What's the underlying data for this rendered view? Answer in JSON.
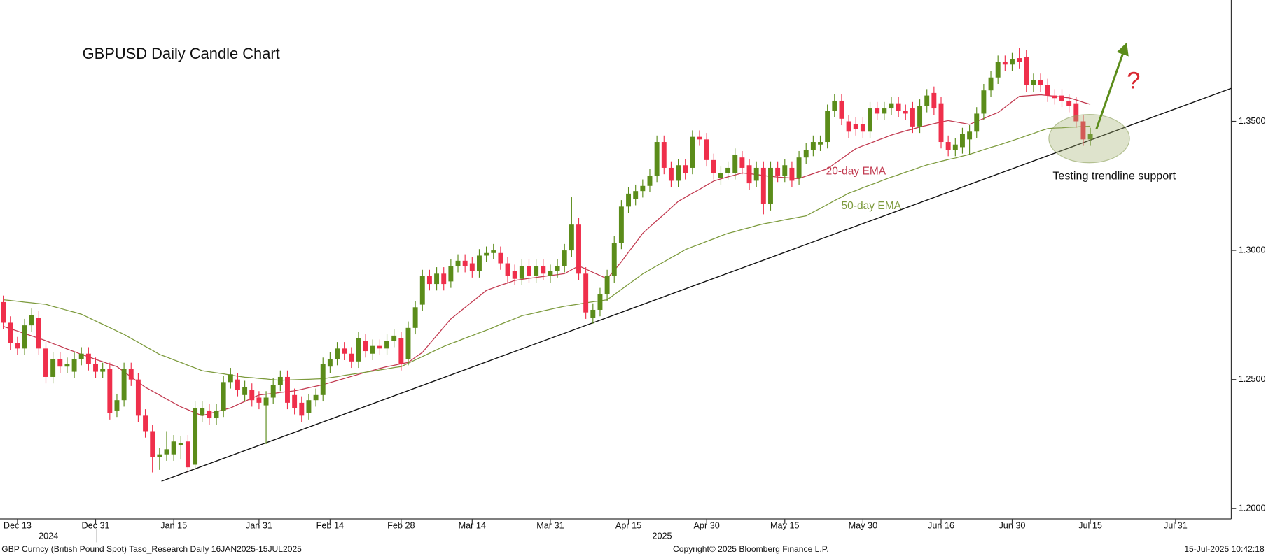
{
  "chart_data": {
    "type": "candlestick",
    "title": "GBPUSD Daily Candle Chart",
    "categories": [
      null,
      null,
      "Dec 13",
      null,
      null,
      null,
      null,
      null,
      null,
      null,
      null,
      null,
      null,
      "Dec 31",
      null,
      null,
      null,
      null,
      null,
      null,
      null,
      null,
      null,
      null,
      "Jan 15",
      null,
      null,
      null,
      null,
      null,
      null,
      null,
      null,
      null,
      null,
      null,
      "Jan 31",
      null,
      null,
      null,
      null,
      null,
      null,
      null,
      null,
      null,
      "Feb 14",
      null,
      null,
      null,
      null,
      null,
      null,
      null,
      null,
      null,
      "Feb 28",
      null,
      null,
      null,
      null,
      null,
      null,
      null,
      null,
      null,
      "Mar 14",
      null,
      null,
      null,
      null,
      null,
      null,
      null,
      null,
      null,
      null,
      "Mar 31",
      null,
      null,
      null,
      null,
      null,
      null,
      null,
      null,
      null,
      null,
      "Apr 15",
      null,
      null,
      null,
      null,
      null,
      null,
      null,
      null,
      null,
      null,
      "Apr 30",
      null,
      null,
      null,
      null,
      null,
      null,
      null,
      null,
      null,
      null,
      "May 15",
      null,
      null,
      null,
      null,
      null,
      null,
      null,
      null,
      null,
      null,
      "May 30",
      null,
      null,
      null,
      null,
      null,
      null,
      null,
      null,
      null,
      null,
      "Jun 16",
      null,
      null,
      null,
      null,
      null,
      null,
      null,
      null,
      null,
      "Jun 30",
      null,
      null,
      null,
      null,
      null,
      null,
      null,
      null,
      null,
      null,
      "Jul 15",
      null,
      null,
      null,
      null,
      null,
      null,
      null,
      null,
      null,
      null,
      null,
      "Jul 31"
    ],
    "years": [
      "2024",
      "2025"
    ],
    "open": [
      1.28,
      1.272,
      1.264,
      1.262,
      1.271,
      1.274,
      1.262,
      1.251,
      1.258,
      1.255,
      1.253,
      1.258,
      1.26,
      1.256,
      1.253,
      1.254,
      1.238,
      1.242,
      1.254,
      1.25,
      1.236,
      1.23,
      1.22,
      1.221,
      1.221,
      1.2245,
      1.226,
      1.217,
      1.236,
      1.238,
      1.235,
      1.238,
      1.249,
      1.25,
      1.244,
      1.246,
      1.243,
      1.24,
      1.243,
      1.248,
      1.251,
      1.244,
      1.241,
      1.237,
      1.242,
      1.244,
      1.255,
      1.258,
      1.262,
      1.26,
      1.257,
      1.265,
      1.26,
      1.263,
      1.262,
      1.265,
      1.266,
      1.258,
      1.27,
      1.279,
      1.29,
      1.287,
      1.291,
      1.288,
      1.294,
      1.296,
      1.295,
      1.292,
      1.298,
      1.299,
      1.299,
      1.295,
      1.292,
      1.289,
      1.294,
      1.29,
      1.294,
      1.29,
      1.292,
      1.294,
      1.3,
      1.31,
      1.291,
      1.274,
      1.277,
      1.283,
      1.29,
      1.303,
      1.317,
      1.32,
      1.323,
      1.325,
      1.329,
      1.342,
      1.332,
      1.327,
      1.333,
      1.332,
      1.344,
      1.343,
      1.335,
      1.328,
      1.33,
      1.33,
      1.336,
      1.333,
      1.327,
      1.332,
      1.318,
      1.332,
      1.329,
      1.332,
      1.328,
      1.336,
      1.339,
      1.341,
      1.342,
      1.354,
      1.358,
      1.35,
      1.349,
      1.349,
      1.346,
      1.355,
      1.353,
      1.355,
      1.357,
      1.354,
      1.355,
      1.348,
      1.356,
      1.361,
      1.357,
      1.342,
      1.339,
      1.34,
      1.343,
      1.346,
      1.353,
      1.362,
      1.367,
      1.373,
      1.372,
      1.3745,
      1.375,
      1.364,
      1.366,
      1.364,
      1.36,
      1.36,
      1.358,
      1.357,
      1.35,
      1.343,
      null,
      null,
      null,
      null,
      null,
      null,
      null,
      null,
      null,
      null,
      null,
      null
    ],
    "high": [
      1.2825,
      1.2745,
      1.2665,
      1.2735,
      1.2775,
      1.2765,
      1.2645,
      1.2605,
      1.2605,
      1.2585,
      1.2605,
      1.2625,
      1.2625,
      1.2585,
      1.2565,
      1.2565,
      1.2445,
      1.2565,
      1.2565,
      1.2525,
      1.2385,
      1.2325,
      1.2235,
      1.23,
      1.2285,
      1.228,
      1.2285,
      1.2415,
      1.2415,
      1.2405,
      1.2405,
      1.2515,
      1.2545,
      1.2525,
      1.2495,
      1.2485,
      1.2455,
      1.2455,
      1.2505,
      1.2535,
      1.2535,
      1.2465,
      1.2435,
      1.2445,
      1.2465,
      1.2585,
      1.2605,
      1.2645,
      1.2645,
      1.2625,
      1.2685,
      1.2675,
      1.2655,
      1.2655,
      1.2675,
      1.2695,
      1.2685,
      1.2725,
      1.2805,
      1.2925,
      1.2925,
      1.2935,
      1.2935,
      1.2965,
      1.2985,
      1.2985,
      1.2975,
      1.3005,
      1.3015,
      1.3025,
      1.3015,
      1.2975,
      1.2945,
      1.2965,
      1.2965,
      1.2965,
      1.2965,
      1.2945,
      1.2965,
      1.3025,
      1.3206,
      1.3125,
      1.2935,
      1.2795,
      1.2855,
      1.2925,
      1.3055,
      1.3195,
      1.3245,
      1.3255,
      1.3275,
      1.3315,
      1.3445,
      1.3445,
      1.3345,
      1.3355,
      1.3355,
      1.3465,
      1.3465,
      1.3455,
      1.3375,
      1.3325,
      1.3345,
      1.3395,
      1.3385,
      1.3355,
      1.3345,
      1.3345,
      1.3345,
      1.3345,
      1.3355,
      1.3345,
      1.3385,
      1.3415,
      1.3445,
      1.3445,
      1.3565,
      1.3605,
      1.3605,
      1.3525,
      1.3515,
      1.3515,
      1.3575,
      1.3575,
      1.3575,
      1.3595,
      1.3595,
      1.3565,
      1.3575,
      1.3585,
      1.3625,
      1.3635,
      1.3595,
      1.3445,
      1.3435,
      1.3475,
      1.3485,
      1.3555,
      1.3645,
      1.3695,
      1.3755,
      1.3755,
      1.3765,
      1.3784,
      1.3775,
      1.3685,
      1.3685,
      1.3665,
      1.3625,
      1.3625,
      1.3605,
      1.3595,
      1.3525,
      1.3475,
      null,
      null,
      null,
      null,
      null,
      null,
      null,
      null,
      null,
      null,
      null,
      null
    ],
    "low": [
      1.2695,
      1.2615,
      1.2595,
      1.2595,
      1.2685,
      1.2595,
      1.2485,
      1.2485,
      1.2525,
      1.2525,
      1.2505,
      1.2555,
      1.2535,
      1.2505,
      1.2505,
      1.2345,
      1.2355,
      1.2395,
      1.2475,
      1.2335,
      1.2275,
      1.214,
      1.215,
      1.2185,
      1.2185,
      1.219,
      1.214,
      1.215,
      1.2335,
      1.2325,
      1.2325,
      1.2355,
      1.2465,
      1.2435,
      1.2415,
      1.2395,
      1.2385,
      1.225,
      1.2405,
      1.2455,
      1.2385,
      1.2365,
      1.2335,
      1.2345,
      1.2395,
      1.2415,
      1.2525,
      1.2555,
      1.2575,
      1.2545,
      1.2545,
      1.2585,
      1.2575,
      1.2595,
      1.2595,
      1.2625,
      1.2535,
      1.2555,
      1.2675,
      1.2765,
      1.2845,
      1.2845,
      1.2845,
      1.2855,
      1.2915,
      1.2915,
      1.2895,
      1.2895,
      1.2955,
      1.2965,
      1.2925,
      1.2875,
      1.2865,
      1.2865,
      1.2875,
      1.2875,
      1.2885,
      1.2875,
      1.2895,
      1.2915,
      1.2975,
      1.2885,
      1.2735,
      1.2716,
      1.2745,
      1.2805,
      1.2875,
      1.3005,
      1.3145,
      1.3175,
      1.3205,
      1.3225,
      1.3265,
      1.3295,
      1.3245,
      1.3245,
      1.3275,
      1.3295,
      1.3405,
      1.3325,
      1.3275,
      1.3255,
      1.3275,
      1.3275,
      1.3295,
      1.3235,
      1.3245,
      1.314,
      1.3155,
      1.3265,
      1.3265,
      1.3245,
      1.3255,
      1.3335,
      1.3365,
      1.3385,
      1.3395,
      1.3515,
      1.3485,
      1.3435,
      1.3445,
      1.3435,
      1.3435,
      1.3505,
      1.3505,
      1.3525,
      1.3515,
      1.3505,
      1.3455,
      1.3455,
      1.3535,
      1.3525,
      1.3395,
      1.3365,
      1.3365,
      1.3375,
      1.337,
      1.3435,
      1.3505,
      1.3595,
      1.3645,
      1.3695,
      1.3695,
      1.3705,
      1.3615,
      1.3615,
      1.3615,
      1.3575,
      1.3565,
      1.3555,
      1.3535,
      1.3475,
      1.3405,
      1.3405,
      null,
      null,
      null,
      null,
      null,
      null,
      null,
      null,
      null,
      null,
      null,
      null
    ],
    "close": [
      1.272,
      1.264,
      1.262,
      1.271,
      1.275,
      1.262,
      1.251,
      1.258,
      1.255,
      1.256,
      1.258,
      1.26,
      1.256,
      1.253,
      1.254,
      1.237,
      1.242,
      1.254,
      1.25,
      1.236,
      1.23,
      1.22,
      1.221,
      1.223,
      1.226,
      1.2255,
      1.216,
      1.239,
      1.239,
      1.235,
      1.238,
      1.249,
      1.252,
      1.246,
      1.247,
      1.242,
      1.241,
      1.243,
      1.248,
      1.251,
      1.241,
      1.239,
      1.236,
      1.242,
      1.244,
      1.256,
      1.258,
      1.262,
      1.26,
      1.257,
      1.266,
      1.261,
      1.263,
      1.262,
      1.265,
      1.267,
      1.256,
      1.27,
      1.278,
      1.29,
      1.287,
      1.291,
      1.287,
      1.294,
      1.296,
      1.294,
      1.292,
      1.298,
      1.299,
      1.3,
      1.295,
      1.29,
      1.289,
      1.294,
      1.29,
      1.294,
      1.291,
      1.292,
      1.294,
      1.3,
      1.31,
      1.291,
      1.276,
      1.277,
      1.283,
      1.29,
      1.303,
      1.317,
      1.322,
      1.323,
      1.325,
      1.329,
      1.342,
      1.332,
      1.327,
      1.333,
      1.33,
      1.344,
      1.343,
      1.335,
      1.33,
      1.33,
      1.332,
      1.337,
      1.332,
      1.326,
      1.332,
      1.318,
      1.332,
      1.329,
      1.333,
      1.327,
      1.336,
      1.339,
      1.342,
      1.342,
      1.354,
      1.358,
      1.351,
      1.346,
      1.347,
      1.346,
      1.355,
      1.353,
      1.355,
      1.357,
      1.354,
      1.353,
      1.348,
      1.356,
      1.36,
      1.355,
      1.342,
      1.339,
      1.341,
      1.345,
      1.346,
      1.353,
      1.362,
      1.367,
      1.373,
      1.372,
      1.374,
      1.373,
      1.364,
      1.366,
      1.364,
      1.36,
      1.359,
      1.358,
      1.356,
      1.35,
      1.343,
      1.345,
      null,
      null,
      null,
      null,
      null,
      null,
      null,
      null,
      null,
      null,
      null,
      null
    ],
    "up_color": "#5b8c1a",
    "down_color": "#ef2f4b",
    "series": [
      {
        "name": "20-day EMA",
        "color": "#c23a50",
        "values": [
          1.2706,
          1.2697,
          1.2688,
          1.2678,
          1.2669,
          1.266,
          1.265,
          1.2639,
          1.2629,
          1.2618,
          1.2608,
          1.2597,
          1.2588,
          1.2578,
          1.2569,
          1.2559,
          1.255,
          1.253,
          1.251,
          1.249,
          1.247,
          1.2455,
          1.244,
          1.2424,
          1.2409,
          1.2394,
          1.2383,
          1.2371,
          1.236,
          1.2368,
          1.2375,
          1.2383,
          1.239,
          1.2403,
          1.2415,
          1.2428,
          1.244,
          1.2443,
          1.2446,
          1.245,
          1.2453,
          1.2456,
          1.2462,
          1.2468,
          1.2474,
          1.248,
          1.2488,
          1.2496,
          1.2504,
          1.2512,
          1.252,
          1.2528,
          1.2535,
          1.2543,
          1.255,
          1.2555,
          1.2561,
          1.2566,
          1.2586,
          1.2605,
          1.2638,
          1.267,
          1.2703,
          1.2735,
          1.2757,
          1.2779,
          1.2801,
          1.2823,
          1.2845,
          1.2855,
          1.2865,
          1.2874,
          1.2884,
          1.2888,
          1.2892,
          1.2895,
          1.2899,
          1.2903,
          1.2906,
          1.291,
          1.2925,
          1.294,
          1.2928,
          1.2915,
          1.2903,
          1.289,
          1.2923,
          1.2956,
          1.2993,
          1.3029,
          1.3066,
          1.3091,
          1.3116,
          1.314,
          1.3165,
          1.319,
          1.3206,
          1.3222,
          1.3237,
          1.3253,
          1.3269,
          1.3277,
          1.3285,
          1.3292,
          1.33,
          1.3297,
          1.3294,
          1.329,
          1.3287,
          1.3284,
          1.3282,
          1.328,
          1.3278,
          1.3288,
          1.3297,
          1.3307,
          1.3316,
          1.3336,
          1.3355,
          1.3375,
          1.3394,
          1.3405,
          1.3415,
          1.3426,
          1.3436,
          1.3447,
          1.3455,
          1.3463,
          1.347,
          1.3478,
          1.3484,
          1.3491,
          1.3497,
          1.3503,
          1.3498,
          1.3493,
          1.3488,
          1.35,
          1.3511,
          1.3523,
          1.3534,
          1.3555,
          1.3576,
          1.3597,
          1.3599,
          1.3601,
          1.3603,
          1.36,
          1.3597,
          1.3594,
          1.3591,
          1.3583,
          1.3574,
          1.3566,
          null,
          null,
          null,
          null,
          null,
          null,
          null,
          null,
          null,
          null,
          null,
          null
        ]
      },
      {
        "name": "50-day EMA",
        "color": "#7c9a3c",
        "values": [
          1.2809,
          1.2806,
          1.2803,
          1.28,
          1.2797,
          1.2794,
          1.2791,
          1.2783,
          1.2776,
          1.2768,
          1.2761,
          1.2753,
          1.274,
          1.2727,
          1.2714,
          1.2701,
          1.2688,
          1.2675,
          1.2659,
          1.2644,
          1.2628,
          1.2613,
          1.2597,
          1.2587,
          1.2576,
          1.2566,
          1.2555,
          1.2545,
          1.2534,
          1.253,
          1.2526,
          1.2522,
          1.2517,
          1.2513,
          1.2509,
          1.2507,
          1.2504,
          1.2502,
          1.2499,
          1.2497,
          1.2498,
          1.2499,
          1.25,
          1.2501,
          1.2502,
          1.2503,
          1.2507,
          1.2511,
          1.2516,
          1.252,
          1.2524,
          1.2528,
          1.2532,
          1.2537,
          1.2541,
          1.2546,
          1.255,
          1.2563,
          1.2576,
          1.2589,
          1.2602,
          1.2615,
          1.2628,
          1.2639,
          1.2649,
          1.266,
          1.267,
          1.2681,
          1.2691,
          1.2702,
          1.2714,
          1.2725,
          1.2736,
          1.2747,
          1.2753,
          1.2759,
          1.2766,
          1.2772,
          1.2778,
          1.2784,
          1.2788,
          1.2792,
          1.2797,
          1.2801,
          1.2805,
          1.2809,
          1.2829,
          1.2849,
          1.2869,
          1.2889,
          1.2909,
          1.2925,
          1.2941,
          1.2956,
          1.2972,
          1.2987,
          1.3003,
          1.3014,
          1.3024,
          1.3035,
          1.3045,
          1.3056,
          1.3066,
          1.3073,
          1.3081,
          1.3088,
          1.3096,
          1.3103,
          1.3108,
          1.3113,
          1.3119,
          1.3124,
          1.3129,
          1.3134,
          1.3149,
          1.3163,
          1.3178,
          1.3193,
          1.3207,
          1.3222,
          1.3232,
          1.3243,
          1.3253,
          1.3263,
          1.3274,
          1.3284,
          1.3293,
          1.3303,
          1.3312,
          1.3322,
          1.3331,
          1.3338,
          1.3345,
          1.3352,
          1.3358,
          1.3365,
          1.3372,
          1.3381,
          1.339,
          1.3399,
          1.3407,
          1.3416,
          1.3425,
          1.3434,
          1.3444,
          1.3453,
          1.3463,
          1.3472,
          1.3474,
          1.3475,
          1.3477,
          1.3478,
          1.348,
          1.3481,
          null,
          null,
          null,
          null,
          null,
          null,
          null,
          null,
          null,
          null,
          null,
          null
        ]
      }
    ],
    "trendline": {
      "color": "#111111",
      "values": [
        1.2106,
        1.3628
      ]
    },
    "ylim": [
      1.196,
      1.397
    ],
    "yticks": [
      {
        "value": 1.2,
        "label": "1.2000"
      },
      {
        "value": 1.25,
        "label": "1.2500"
      },
      {
        "value": 1.3,
        "label": "1.3000"
      },
      {
        "value": 1.35,
        "label": "1.3500"
      }
    ],
    "annotations": {
      "support": "Testing trendline support",
      "question": "?"
    },
    "footer": {
      "left": "GBP Curncy (British Pound Spot) Taso_Research  Daily 16JAN2025-15JUL2025",
      "center": "Copyright© 2025 Bloomberg Finance L.P.",
      "right": "15-Jul-2025 10:42:18"
    }
  }
}
